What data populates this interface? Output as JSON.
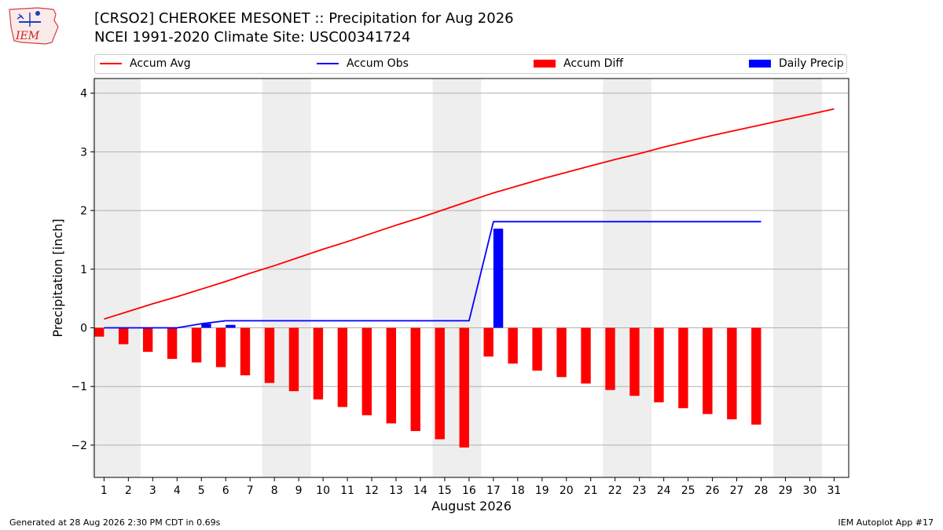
{
  "header": {
    "title": "[CRSO2] CHEROKEE MESONET :: Precipitation for Aug 2026",
    "subtitle": "NCEI 1991-2020 Climate Site: USC00341724",
    "logo_text": "IEM"
  },
  "footer": {
    "left": "Generated at 28 Aug 2026 2:30 PM CDT in 0.69s",
    "right": "IEM Autoplot App #17"
  },
  "colors": {
    "avg": "#ff0000",
    "obs": "#0000ff",
    "diff": "#ff0000",
    "daily": "#0000ff",
    "weekend": "#eeeeee",
    "grid": "#b0b0b0"
  },
  "chart_data": {
    "type": "bar",
    "xlabel": "August 2026",
    "ylabel": "Precipitation [inch]",
    "xlim": [
      0.6,
      31.6
    ],
    "ylim": [
      -2.55,
      4.25
    ],
    "yticks": [
      -2,
      -1,
      0,
      1,
      2,
      3,
      4
    ],
    "ytick_labels": [
      "−2",
      "−1",
      "0",
      "1",
      "2",
      "3",
      "4"
    ],
    "xticks": [
      1,
      2,
      3,
      4,
      5,
      6,
      7,
      8,
      9,
      10,
      11,
      12,
      13,
      14,
      15,
      16,
      17,
      18,
      19,
      20,
      21,
      22,
      23,
      24,
      25,
      26,
      27,
      28,
      29,
      30,
      31
    ],
    "xtick_labels": [
      "1",
      "2",
      "3",
      "4",
      "5",
      "6",
      "7",
      "8",
      "9",
      "10",
      "11",
      "12",
      "13",
      "14",
      "15",
      "16",
      "17",
      "18",
      "19",
      "20",
      "21",
      "22",
      "23",
      "24",
      "25",
      "26",
      "27",
      "28",
      "29",
      "30",
      "31"
    ],
    "grid": "horizontal",
    "legend_position": "top",
    "weekend_days": [
      [
        1,
        2
      ],
      [
        8,
        9
      ],
      [
        15,
        16
      ],
      [
        22,
        23
      ],
      [
        29,
        30
      ]
    ],
    "series": [
      {
        "name": "Accum Avg",
        "type": "line",
        "x": [
          1,
          2,
          3,
          4,
          5,
          6,
          7,
          8,
          9,
          10,
          11,
          12,
          13,
          14,
          15,
          16,
          17,
          18,
          19,
          20,
          21,
          22,
          23,
          24,
          25,
          26,
          27,
          28,
          29,
          30,
          31
        ],
        "values": [
          0.15,
          0.28,
          0.41,
          0.53,
          0.66,
          0.79,
          0.93,
          1.06,
          1.2,
          1.34,
          1.47,
          1.61,
          1.75,
          1.88,
          2.02,
          2.16,
          2.3,
          2.42,
          2.54,
          2.65,
          2.76,
          2.87,
          2.97,
          3.08,
          3.18,
          3.28,
          3.37,
          3.46,
          3.55,
          3.64,
          3.73
        ]
      },
      {
        "name": "Accum Obs",
        "type": "line",
        "x": [
          1,
          2,
          3,
          4,
          5,
          6,
          7,
          8,
          9,
          10,
          11,
          12,
          13,
          14,
          15,
          16,
          17,
          18,
          19,
          20,
          21,
          22,
          23,
          24,
          25,
          26,
          27,
          28
        ],
        "values": [
          0,
          0,
          0,
          0,
          0.07,
          0.12,
          0.12,
          0.12,
          0.12,
          0.12,
          0.12,
          0.12,
          0.12,
          0.12,
          0.12,
          0.12,
          1.81,
          1.81,
          1.81,
          1.81,
          1.81,
          1.81,
          1.81,
          1.81,
          1.81,
          1.81,
          1.81,
          1.81
        ]
      },
      {
        "name": "Accum Diff",
        "type": "bar",
        "x": [
          1,
          2,
          3,
          4,
          5,
          6,
          7,
          8,
          9,
          10,
          11,
          12,
          13,
          14,
          15,
          16,
          17,
          18,
          19,
          20,
          21,
          22,
          23,
          24,
          25,
          26,
          27,
          28
        ],
        "values": [
          -0.15,
          -0.28,
          -0.41,
          -0.53,
          -0.59,
          -0.67,
          -0.81,
          -0.94,
          -1.08,
          -1.22,
          -1.35,
          -1.49,
          -1.63,
          -1.76,
          -1.9,
          -2.04,
          -0.49,
          -0.61,
          -0.73,
          -0.84,
          -0.95,
          -1.06,
          -1.16,
          -1.27,
          -1.37,
          -1.47,
          -1.56,
          -1.65
        ]
      },
      {
        "name": "Daily Precip",
        "type": "bar",
        "x": [
          5,
          6,
          17
        ],
        "values": [
          0.07,
          0.05,
          1.69
        ]
      }
    ]
  }
}
